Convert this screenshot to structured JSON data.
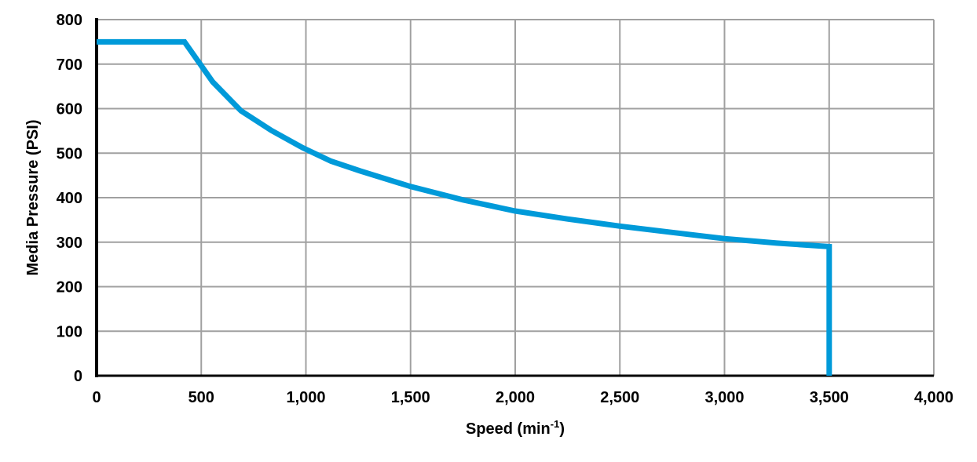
{
  "chart_data": {
    "type": "line",
    "title": "",
    "xlabel": "Speed (min",
    "xlabel_superscript": "-1",
    "xlabel_suffix": ")",
    "ylabel": "Media Pressure (PSI)",
    "xlim": [
      0,
      4000
    ],
    "ylim": [
      0,
      800
    ],
    "x_ticks": [
      0,
      500,
      1000,
      1500,
      2000,
      2500,
      3000,
      3500,
      4000
    ],
    "x_tick_labels": [
      "0",
      "500",
      "1,000",
      "1,500",
      "2,000",
      "2,500",
      "3,000",
      "3,500",
      "4,000"
    ],
    "y_ticks": [
      0,
      100,
      200,
      300,
      400,
      500,
      600,
      700,
      800
    ],
    "y_tick_labels": [
      "0",
      "100",
      "200",
      "300",
      "400",
      "500",
      "600",
      "700",
      "800"
    ],
    "grid": true,
    "legend": "none",
    "series": [
      {
        "color": "#009ad9",
        "points": [
          [
            0,
            750
          ],
          [
            420,
            750
          ],
          [
            555,
            660
          ],
          [
            690,
            595
          ],
          [
            835,
            551
          ],
          [
            985,
            512
          ],
          [
            1120,
            482
          ],
          [
            1260,
            460
          ],
          [
            1500,
            425
          ],
          [
            1750,
            395
          ],
          [
            2000,
            370
          ],
          [
            2250,
            352
          ],
          [
            2500,
            336
          ],
          [
            2750,
            322
          ],
          [
            3000,
            308
          ],
          [
            3250,
            298
          ],
          [
            3500,
            290
          ],
          [
            3500,
            0
          ]
        ]
      }
    ]
  }
}
